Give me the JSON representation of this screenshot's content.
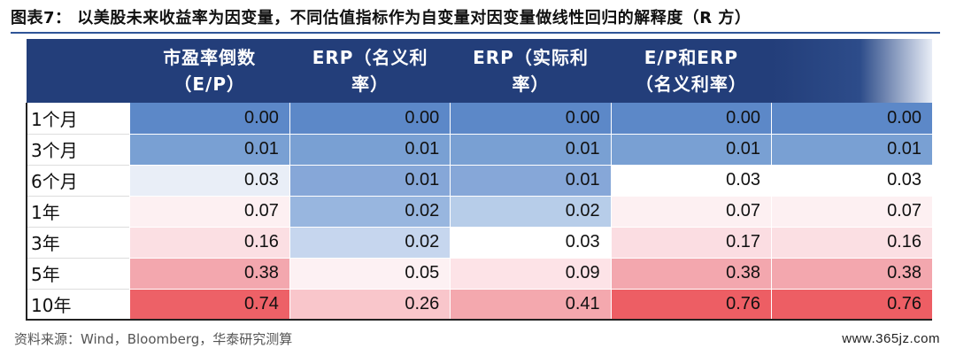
{
  "title": "图表7： 以美股未来收益率为因变量，不同估值指标作为自变量对因变量做线性回归的解释度（R 方）",
  "table": {
    "headers": [
      {
        "line1": "市盈率倒数",
        "line2": "（E/P）"
      },
      {
        "line1": "ERP（名义利",
        "line2": "率）"
      },
      {
        "line1": "ERP（实际利",
        "line2": "率）"
      },
      {
        "line1": "E/P和ERP",
        "line2": "（名义利率）"
      },
      {
        "line1": "",
        "line2": ""
      }
    ],
    "rows": [
      {
        "label": "1个月",
        "values": [
          "0.00",
          "0.00",
          "0.00",
          "0.00",
          "0.00"
        ]
      },
      {
        "label": "3个月",
        "values": [
          "0.01",
          "0.01",
          "0.01",
          "0.01",
          "0.01"
        ]
      },
      {
        "label": "6个月",
        "values": [
          "0.03",
          "0.01",
          "0.01",
          "0.03",
          "0.03"
        ]
      },
      {
        "label": "1年",
        "values": [
          "0.07",
          "0.02",
          "0.02",
          "0.07",
          "0.07"
        ]
      },
      {
        "label": "3年",
        "values": [
          "0.16",
          "0.02",
          "0.03",
          "0.17",
          "0.16"
        ]
      },
      {
        "label": "5年",
        "values": [
          "0.38",
          "0.05",
          "0.09",
          "0.38",
          "0.38"
        ]
      },
      {
        "label": "10年",
        "values": [
          "0.74",
          "0.26",
          "0.41",
          "0.76",
          "0.76"
        ]
      }
    ],
    "cell_colors": [
      [
        "#5c88c8",
        "#5c88c8",
        "#5c88c8",
        "#5c88c8",
        "#5c88c8"
      ],
      [
        "#79a0d3",
        "#79a0d3",
        "#79a0d3",
        "#79a0d3",
        "#79a0d3"
      ],
      [
        "#e9eef7",
        "#86a7d8",
        "#86a7d8",
        "#ffffff",
        "#ffffff"
      ],
      [
        "#fdf0f2",
        "#98b6df",
        "#b7cde9",
        "#fdf0f2",
        "#fdf0f2"
      ],
      [
        "#fbdfe3",
        "#c6d6ee",
        "#ffffff",
        "#fbdde2",
        "#fbdfe3"
      ],
      [
        "#f3a7ae",
        "#fdf1f3",
        "#fde3e7",
        "#f3a7ae",
        "#f3a7ae"
      ],
      [
        "#ed6167",
        "#f9c6cb",
        "#f4a8ae",
        "#ed5e64",
        "#ed5e64"
      ]
    ]
  },
  "source": "资料来源：Wind，Bloomberg，华泰研究测算",
  "watermark": "www.365jz.com"
}
